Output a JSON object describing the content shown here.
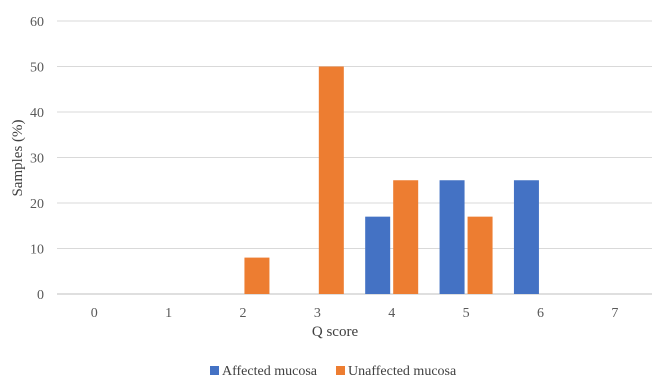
{
  "chart_data": {
    "type": "bar",
    "title": "",
    "xlabel": "Q score",
    "ylabel": "Samples (%)",
    "categories": [
      "0",
      "1",
      "2",
      "3",
      "4",
      "5",
      "6",
      "7"
    ],
    "ylim": [
      0,
      60
    ],
    "yticks": [
      "0",
      "10",
      "20",
      "30",
      "40",
      "50",
      "60"
    ],
    "grid": true,
    "legend_position": "bottom",
    "series": [
      {
        "name": "Affected mucosa",
        "color": "#4472C4",
        "values": [
          null,
          null,
          null,
          null,
          17,
          25,
          25,
          null
        ]
      },
      {
        "name": "Unaffected mucosa",
        "color": "#ED7D31",
        "values": [
          null,
          null,
          8,
          50,
          25,
          17,
          null,
          null
        ]
      }
    ]
  }
}
